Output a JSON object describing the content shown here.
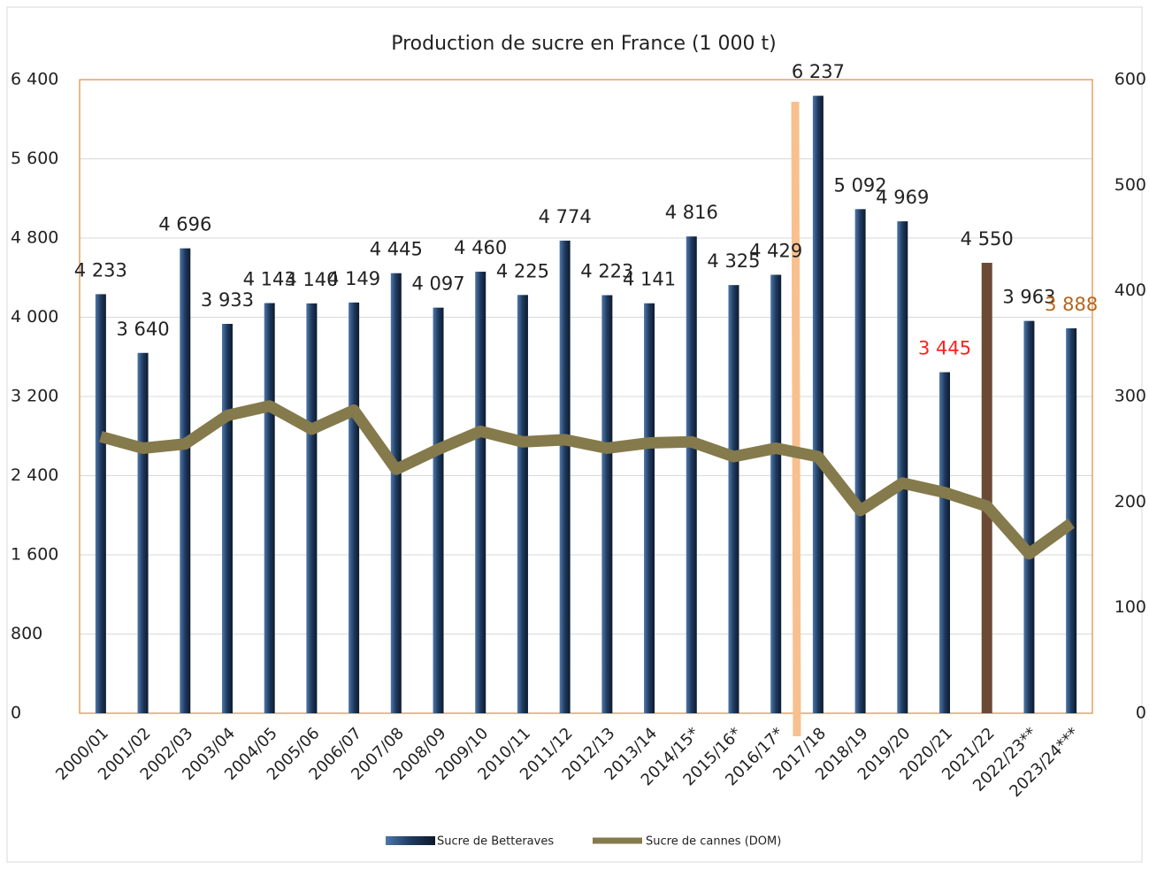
{
  "chart_data": {
    "type": "bar-line",
    "title": "Production de sucre en France (1 000 t)",
    "categories": [
      "2000/01",
      "2001/02",
      "2002/03",
      "2003/04",
      "2004/05",
      "2005/06",
      "2006/07",
      "2007/08",
      "2008/09",
      "2009/10",
      "2010/11",
      "2011/12",
      "2012/13",
      "2013/14",
      "2014/15*",
      "2015/16*",
      "2016/17*",
      "2017/18",
      "2018/19",
      "2019/20",
      "2020/21",
      "2021/22",
      "2022/23**",
      "2023/24***"
    ],
    "series": [
      {
        "name": "Sucre de Betteraves",
        "type": "bar",
        "color": "#1f3a5f",
        "colors": [
          "#1f3a5f",
          "#1f3a5f",
          "#1f3a5f",
          "#1f3a5f",
          "#1f3a5f",
          "#1f3a5f",
          "#1f3a5f",
          "#1f3a5f",
          "#1f3a5f",
          "#1f3a5f",
          "#1f3a5f",
          "#1f3a5f",
          "#1f3a5f",
          "#1f3a5f",
          "#1f3a5f",
          "#1f3a5f",
          "#1f3a5f",
          "#1f3a5f",
          "#1f3a5f",
          "#1f3a5f",
          "#1f3a5f",
          "#6b4a35",
          "#1f3a5f",
          "#1f3a5f"
        ],
        "values": [
          4233,
          3640,
          4696,
          3933,
          4143,
          4140,
          4149,
          4445,
          4097,
          4460,
          4225,
          4774,
          4223,
          4141,
          4816,
          4325,
          4429,
          6237,
          5092,
          4969,
          3445,
          4550,
          3963,
          3888
        ],
        "value_labels": [
          "4 233",
          "3 640",
          "4 696",
          "3 933",
          "4 143",
          "4 140",
          "4 149",
          "4 445",
          "4 097",
          "4 460",
          "4 225",
          "4 774",
          "4 223",
          "4 141",
          "4 816",
          "4 325",
          "4 429",
          "6 237",
          "5 092",
          "4 969",
          "3 445",
          "4 550",
          "3 963",
          "3 888"
        ],
        "label_colors": [
          "#222",
          "#222",
          "#222",
          "#222",
          "#222",
          "#222",
          "#222",
          "#222",
          "#222",
          "#222",
          "#222",
          "#222",
          "#222",
          "#222",
          "#222",
          "#222",
          "#222",
          "#222",
          "#222",
          "#222",
          "#ff2020",
          "#222",
          "#222",
          "#b5651d"
        ]
      },
      {
        "name": "Sucre de cannes (DOM)",
        "type": "line",
        "color": "#857a4c",
        "axis": "y2",
        "values": [
          262,
          251,
          255,
          282,
          291,
          269,
          287,
          231,
          250,
          267,
          257,
          259,
          251,
          256,
          257,
          243,
          251,
          243,
          192,
          218,
          209,
          196,
          151,
          180
        ]
      }
    ],
    "ylim": [
      0,
      6400
    ],
    "yticks": [
      0,
      {
        "value": 800,
        "label": "800"
      },
      {
        "value": 1600,
        "label": "1 600"
      },
      {
        "value": 2400,
        "label": "2 400"
      },
      {
        "value": 3200,
        "label": "3 200"
      },
      {
        "value": 4000,
        "label": "4 000"
      },
      {
        "value": 4800,
        "label": "4 800"
      },
      {
        "value": 5600,
        "label": "5 600"
      },
      {
        "value": 6400,
        "label": "6 400"
      }
    ],
    "y2lim": [
      0,
      600
    ],
    "y2ticks": [
      0,
      100,
      200,
      300,
      400,
      500,
      600
    ],
    "grid": true,
    "legend": "bottom"
  }
}
